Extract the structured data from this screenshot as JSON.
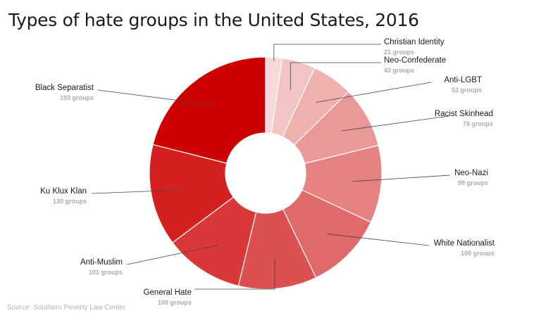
{
  "title": "Types of hate groups in the United States, 2016",
  "source": "Source: Southern Poverty Law Center",
  "unit_suffix": " groups",
  "chart_data": {
    "type": "pie",
    "subtype": "donut",
    "title": "Types of hate groups in the United States, 2016",
    "categories": [
      "Christian Identity",
      "Neo-Confederate",
      "Anti-LGBT",
      "Racist Skinhead",
      "Neo-Nazi",
      "White Nationalist",
      "General Hate",
      "Anti-Muslim",
      "Ku Klux Klan",
      "Black Separatist"
    ],
    "values": [
      21,
      43,
      52,
      78,
      99,
      100,
      100,
      101,
      130,
      193
    ],
    "count_labels": [
      "21 groups",
      "43 groups",
      "52 groups",
      "78 groups",
      "99 groups",
      "100 groups",
      "100 groups",
      "101 groups",
      "130 groups",
      "193 groups"
    ],
    "colors": [
      "#f6dada",
      "#f2c4c4",
      "#efb0b0",
      "#ea9898",
      "#e68282",
      "#e06a6a",
      "#db5050",
      "#d83838",
      "#d42020",
      "#cc0000"
    ],
    "legend": "none"
  }
}
